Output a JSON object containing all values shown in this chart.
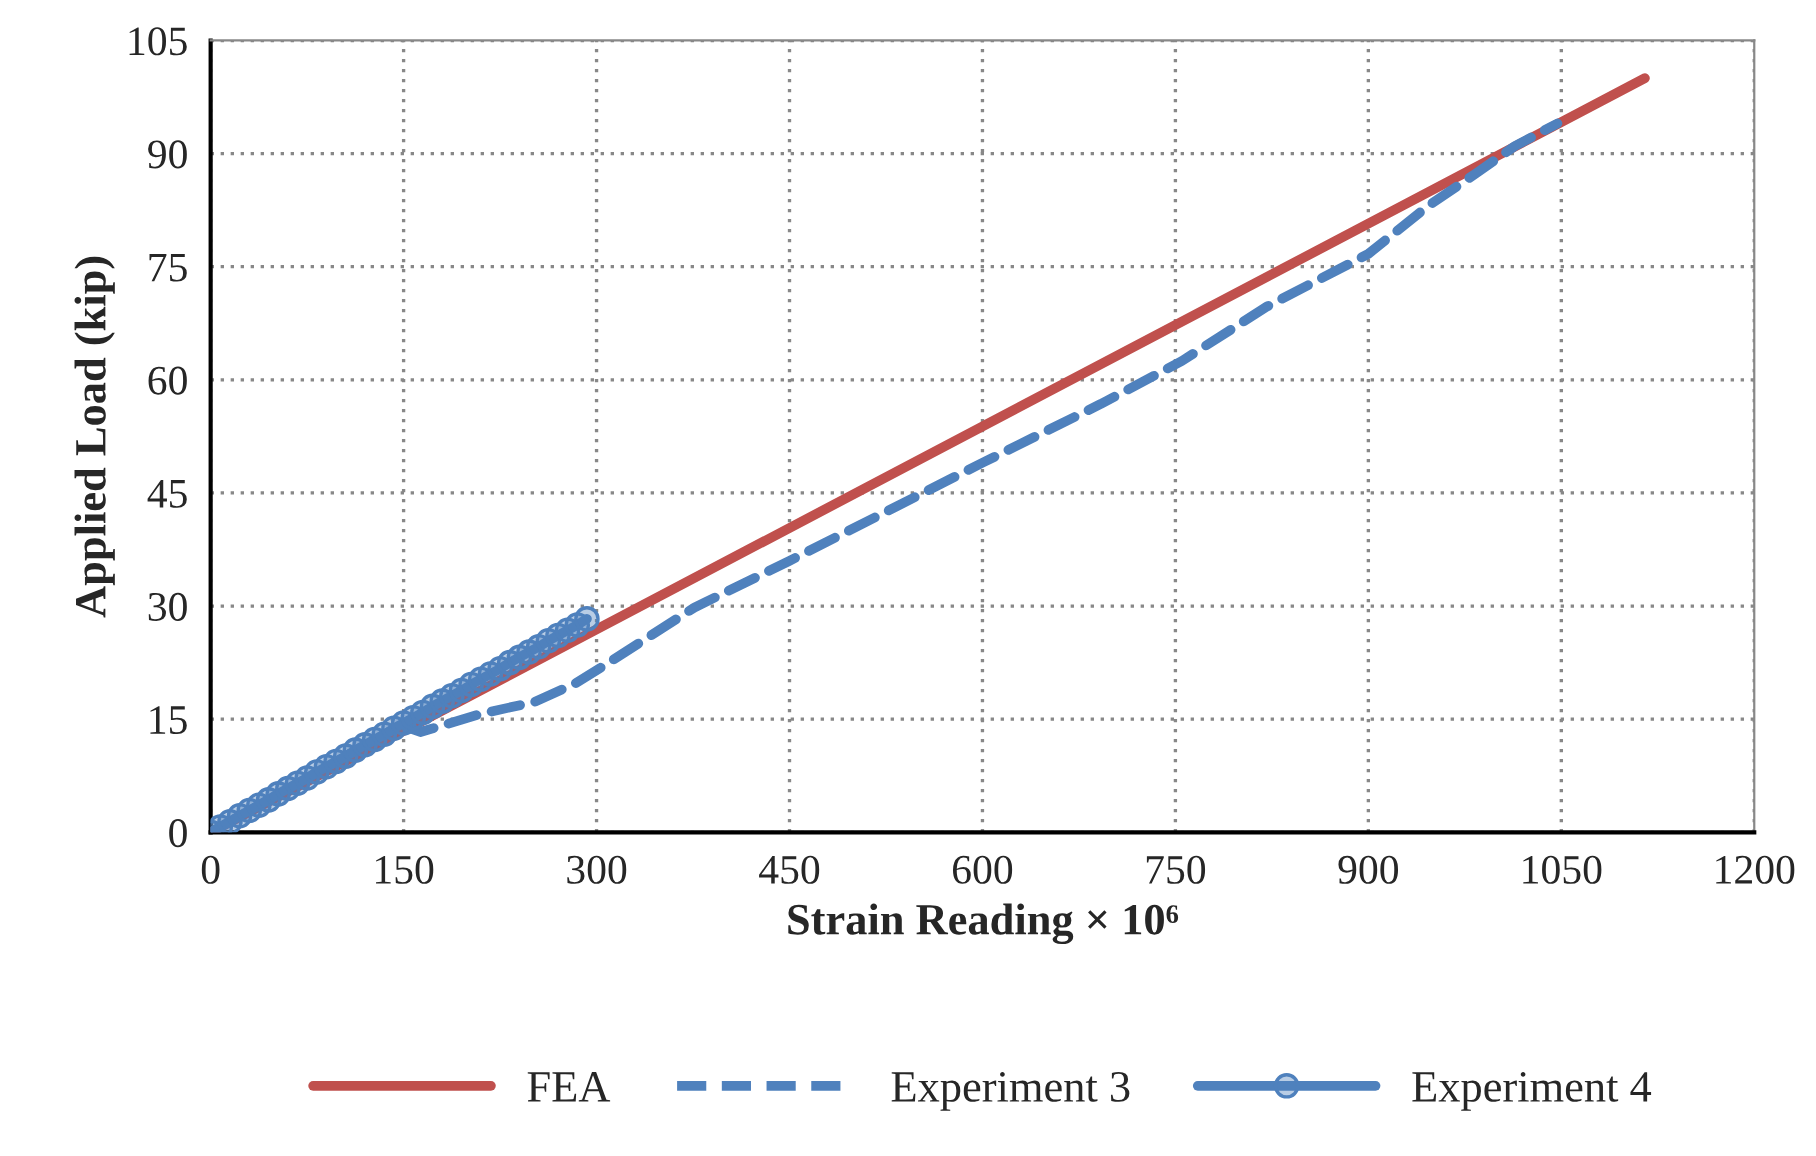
{
  "chart_data": {
    "type": "line",
    "xlabel": "Strain Reading × 10⁶",
    "ylabel": "Applied Load (kip)",
    "xlim": [
      0,
      1200
    ],
    "xticks": [
      0,
      150,
      300,
      450,
      600,
      750,
      900,
      1050,
      1200
    ],
    "ylim": [
      0,
      105
    ],
    "yticks": [
      0,
      15,
      30,
      45,
      60,
      75,
      90,
      105
    ],
    "grid": true,
    "legend": "bottom",
    "series": [
      {
        "name": "FEA",
        "color": "#c0504d",
        "line_style": "solid",
        "marker": "none",
        "x": [
          0,
          1115
        ],
        "values": [
          0,
          100
        ]
      },
      {
        "name": "Experiment 3",
        "color": "#4f81bd",
        "line_style": "dashed",
        "marker": "none",
        "x": [
          0,
          75,
          148,
          163,
          210,
          252,
          283,
          303,
          376,
          450,
          525,
          600,
          692,
          755,
          821,
          900,
          946,
          983,
          1014,
          1047
        ],
        "values": [
          0,
          7.2,
          14.2,
          13.3,
          15.7,
          17.3,
          19.7,
          21.8,
          29.8,
          36,
          42.5,
          49,
          56.8,
          62.5,
          69.7,
          76.7,
          83,
          87.3,
          91,
          94
        ]
      },
      {
        "name": "Experiment 4",
        "color": "#4f81bd",
        "line_style": "solid",
        "marker": "circle",
        "x": [
          0,
          7.5,
          15,
          22.5,
          30,
          37.5,
          45,
          52.5,
          60,
          67.5,
          75,
          82.5,
          90,
          97.5,
          105,
          112.5,
          120,
          127.5,
          135,
          142.5,
          150,
          157.5,
          165,
          172.5,
          180,
          187.5,
          195,
          202.5,
          210,
          217.5,
          225,
          232.5,
          240,
          247.5,
          255,
          262.5,
          270,
          277.5,
          285,
          292.5
        ],
        "values": [
          0,
          0.7,
          1.4,
          2.2,
          2.9,
          3.6,
          4.3,
          5.1,
          5.8,
          6.5,
          7.2,
          8.0,
          8.7,
          9.4,
          10.1,
          10.9,
          11.6,
          12.3,
          13.0,
          13.8,
          14.5,
          15.2,
          15.9,
          16.7,
          17.4,
          18.1,
          18.8,
          19.6,
          20.3,
          21.0,
          21.7,
          22.5,
          23.2,
          23.9,
          24.6,
          25.4,
          26.1,
          26.8,
          27.5,
          28.3
        ]
      }
    ]
  }
}
